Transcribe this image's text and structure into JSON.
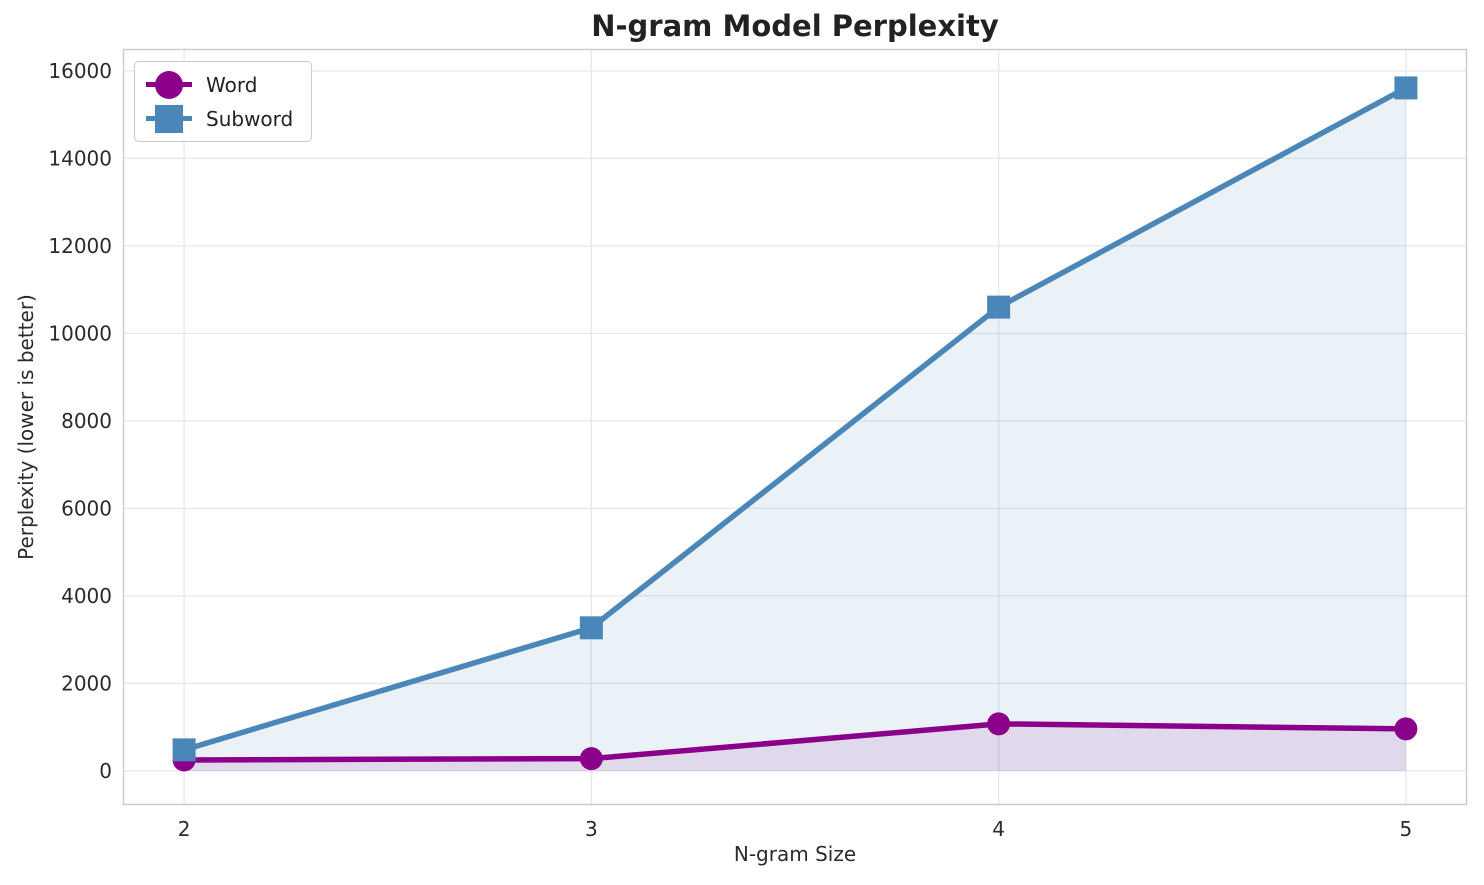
{
  "chart_data": {
    "type": "line",
    "title": "N-gram Model Perplexity",
    "xlabel": "N-gram Size",
    "ylabel": "Perplexity (lower is better)",
    "x": [
      2,
      3,
      4,
      5
    ],
    "series": [
      {
        "name": "Word",
        "values": [
          250,
          280,
          1075,
          960
        ],
        "color": "#8B008B",
        "marker": "circle",
        "fill_under": true
      },
      {
        "name": "Subword",
        "values": [
          480,
          3270,
          10600,
          15610
        ],
        "color": "#4A86B8",
        "marker": "square",
        "fill_under": true
      }
    ],
    "xticks": [
      2,
      3,
      4,
      5
    ],
    "yticks": [
      0,
      2000,
      4000,
      6000,
      8000,
      10000,
      12000,
      14000,
      16000
    ],
    "xlim": [
      1.85,
      5.15
    ],
    "ylim": [
      -780,
      16500
    ],
    "grid": true,
    "grid_color": "#e7e7e7",
    "spine_color": "#cbcbcb",
    "text_color": "#2b2b2b",
    "background": "#ffffff",
    "fill_opacity": 0.11,
    "legend_position": "upper left"
  }
}
